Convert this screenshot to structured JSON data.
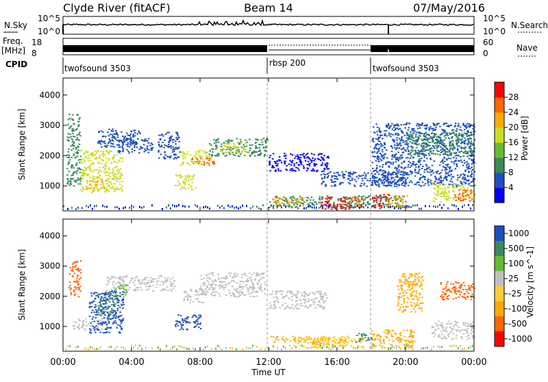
{
  "header": {
    "station": "Clyde River (fitACF)",
    "beam": "Beam 14",
    "date": "07/May/2016"
  },
  "panels": {
    "nsky": {
      "label": "N.Sky",
      "ticks_left": [
        "10^5",
        "10^0"
      ],
      "ticks_right": [
        "10^5",
        "10^0"
      ],
      "right_label": "N.Search"
    },
    "freq": {
      "label_top": "Freq.",
      "label_unit": "[MHz]",
      "ticks_left": [
        "18",
        "8"
      ],
      "ticks_right": [
        "60",
        "0"
      ],
      "right_label": "Nave"
    },
    "cpid": {
      "label": "CPID",
      "segments": [
        {
          "name": "twofsound 3503",
          "start_hour": 0
        },
        {
          "name": "rbsp 200",
          "start_hour": 12
        },
        {
          "name": "twofsound 3503",
          "start_hour": 18
        }
      ]
    }
  },
  "chart_data": [
    {
      "type": "heatmap",
      "name": "power",
      "ylabel": "Slant Range [km]",
      "ylim": [
        180,
        4560
      ],
      "y_ticks": [
        "1000",
        "2000",
        "3000",
        "4000"
      ],
      "colorbar_label": "Power [dB]",
      "colorbar_ticks": [
        "4",
        "8",
        "12",
        "16",
        "20",
        "24",
        "28"
      ],
      "colorbar_colors": [
        "#0000ff",
        "#1f4fbf",
        "#3a8a5a",
        "#66bb33",
        "#ccdd22",
        "#ffaa00",
        "#ff6600",
        "#ff0000"
      ],
      "regions": [
        {
          "x": [
            0.2,
            1.0
          ],
          "y": [
            1000,
            3400
          ],
          "level": 2
        },
        {
          "x": [
            1.0,
            3.5
          ],
          "y": [
            800,
            2200
          ],
          "level": 4
        },
        {
          "x": [
            1.3,
            2.5
          ],
          "y": [
            900,
            1200
          ],
          "level": 5
        },
        {
          "x": [
            2.0,
            4.5
          ],
          "y": [
            2300,
            2900
          ],
          "level": 1
        },
        {
          "x": [
            3.2,
            5.2
          ],
          "y": [
            2100,
            2600
          ],
          "level": 1
        },
        {
          "x": [
            5.5,
            6.8
          ],
          "y": [
            1900,
            2800
          ],
          "level": 1
        },
        {
          "x": [
            6.5,
            7.7
          ],
          "y": [
            900,
            1400
          ],
          "level": 4
        },
        {
          "x": [
            6.8,
            8.6
          ],
          "y": [
            1700,
            2200
          ],
          "level": 4
        },
        {
          "x": [
            7.5,
            8.8
          ],
          "y": [
            1700,
            1950
          ],
          "level": 6
        },
        {
          "x": [
            8.5,
            11.9
          ],
          "y": [
            2000,
            2600
          ],
          "level": 2
        },
        {
          "x": [
            9.0,
            10.8
          ],
          "y": [
            2100,
            2450
          ],
          "level": 4
        },
        {
          "x": [
            12.0,
            15.5
          ],
          "y": [
            1500,
            2100
          ],
          "level": 0
        },
        {
          "x": [
            15.0,
            20.0
          ],
          "y": [
            1000,
            1500
          ],
          "level": 1
        },
        {
          "x": [
            12.0,
            20.0
          ],
          "y": [
            300,
            700
          ],
          "level": 2
        },
        {
          "x": [
            12.2,
            14.0
          ],
          "y": [
            350,
            650
          ],
          "level": 5
        },
        {
          "x": [
            15.0,
            16.8
          ],
          "y": [
            250,
            650
          ],
          "level": 7
        },
        {
          "x": [
            16.5,
            17.5
          ],
          "y": [
            300,
            650
          ],
          "level": 6
        },
        {
          "x": [
            18.0,
            19.0
          ],
          "y": [
            300,
            750
          ],
          "level": 7
        },
        {
          "x": [
            18.8,
            20.2
          ],
          "y": [
            300,
            700
          ],
          "level": 5
        },
        {
          "x": [
            18.0,
            24.0
          ],
          "y": [
            1000,
            3100
          ],
          "level": 1
        },
        {
          "x": [
            20.0,
            24.0
          ],
          "y": [
            2000,
            2800
          ],
          "level": 2
        },
        {
          "x": [
            21.5,
            24.0
          ],
          "y": [
            500,
            1100
          ],
          "level": 4
        },
        {
          "x": [
            22.8,
            24.0
          ],
          "y": [
            500,
            900
          ],
          "level": 6
        }
      ]
    },
    {
      "type": "heatmap",
      "name": "velocity",
      "ylabel": "Slant Range [km]",
      "xlabel": "Time UT",
      "x_ticks": [
        "00:00",
        "04:00",
        "08:00",
        "12:00",
        "16:00",
        "20:00",
        "00:00"
      ],
      "xlim": [
        0,
        24
      ],
      "ylim": [
        180,
        4560
      ],
      "y_ticks": [
        "1000",
        "2000",
        "3000",
        "4000"
      ],
      "colorbar_label": "Velocity [m s^-1]",
      "colorbar_ticks": [
        "1000",
        "500",
        "100",
        "25",
        "-25",
        "-100",
        "-500",
        "-1000"
      ],
      "colorbar_colors": [
        "#1f4fbf",
        "#3a8a5a",
        "#66bb33",
        "#c0c0c0",
        "#ffcc33",
        "#ffaa00",
        "#ff6600",
        "#ff0000"
      ],
      "regions": [
        {
          "x": [
            0.3,
            1.0
          ],
          "y": [
            2000,
            3200
          ],
          "level": 6
        },
        {
          "x": [
            0.5,
            2.5
          ],
          "y": [
            900,
            1300
          ],
          "level": 3
        },
        {
          "x": [
            1.5,
            3.5
          ],
          "y": [
            800,
            2200
          ],
          "level": 0
        },
        {
          "x": [
            2.0,
            3.0
          ],
          "y": [
            1400,
            2100
          ],
          "level": 1
        },
        {
          "x": [
            2.5,
            4.5
          ],
          "y": [
            2200,
            2700
          ],
          "level": 3
        },
        {
          "x": [
            3.0,
            3.8
          ],
          "y": [
            2000,
            2400
          ],
          "level": 2
        },
        {
          "x": [
            4.5,
            6.5
          ],
          "y": [
            2200,
            2700
          ],
          "level": 3
        },
        {
          "x": [
            6.5,
            8.0
          ],
          "y": [
            900,
            1400
          ],
          "level": 0
        },
        {
          "x": [
            7.0,
            8.2
          ],
          "y": [
            1800,
            2300
          ],
          "level": 3
        },
        {
          "x": [
            8.0,
            11.8
          ],
          "y": [
            2000,
            2800
          ],
          "level": 3
        },
        {
          "x": [
            12.0,
            15.5
          ],
          "y": [
            1600,
            2200
          ],
          "level": 3
        },
        {
          "x": [
            12.0,
            14.5
          ],
          "y": [
            500,
            700
          ],
          "level": 5
        },
        {
          "x": [
            13.5,
            17.5
          ],
          "y": [
            300,
            700
          ],
          "level": 4
        },
        {
          "x": [
            14.5,
            16.5
          ],
          "y": [
            400,
            650
          ],
          "level": 5
        },
        {
          "x": [
            17.0,
            18.0
          ],
          "y": [
            500,
            800
          ],
          "level": 1
        },
        {
          "x": [
            18.0,
            20.5
          ],
          "y": [
            300,
            900
          ],
          "level": 5
        },
        {
          "x": [
            19.5,
            21.0
          ],
          "y": [
            1500,
            2800
          ],
          "level": 5
        },
        {
          "x": [
            21.5,
            24.0
          ],
          "y": [
            600,
            1200
          ],
          "level": 3
        },
        {
          "x": [
            22.0,
            24.0
          ],
          "y": [
            1900,
            2500
          ],
          "level": 6
        }
      ]
    }
  ]
}
